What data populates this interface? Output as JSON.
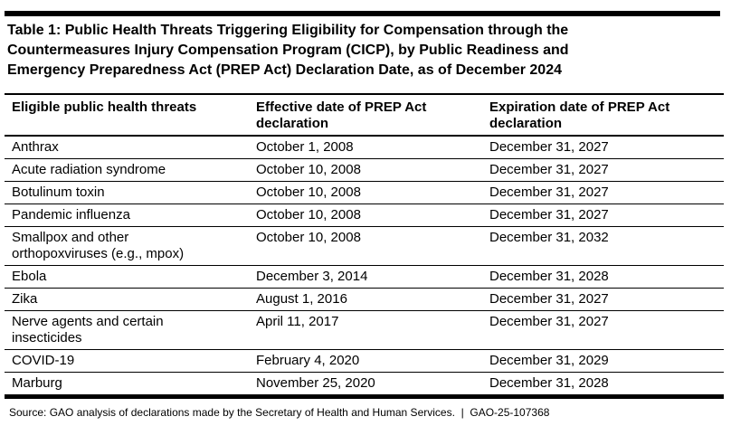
{
  "title_lines": [
    "Table 1: Public Health Threats Triggering Eligibility for Compensation through the",
    "Countermeasures Injury Compensation Program (CICP), by Public Readiness and",
    "Emergency Preparedness Act (PREP Act) Declaration Date, as of December 2024"
  ],
  "table": {
    "headers": [
      "Eligible public health threats",
      "Effective date of PREP Act declaration",
      "Expiration date of PREP Act declaration"
    ],
    "rows": [
      {
        "threat": "Anthrax",
        "effective": "October 1, 2008",
        "expiration": "December 31, 2027"
      },
      {
        "threat": "Acute radiation syndrome",
        "effective": "October 10, 2008",
        "expiration": "December 31, 2027"
      },
      {
        "threat": "Botulinum toxin",
        "effective": "October 10, 2008",
        "expiration": "December 31, 2027"
      },
      {
        "threat": "Pandemic influenza",
        "effective": "October 10, 2008",
        "expiration": "December 31, 2027"
      },
      {
        "threat": "Smallpox and other orthopoxviruses (e.g., mpox)",
        "effective": "October 10, 2008",
        "expiration": "December 31, 2032"
      },
      {
        "threat": "Ebola",
        "effective": "December 3, 2014",
        "expiration": "December 31, 2028"
      },
      {
        "threat": "Zika",
        "effective": "August 1, 2016",
        "expiration": "December 31, 2027"
      },
      {
        "threat": "Nerve agents and certain insecticides",
        "effective": "April 11, 2017",
        "expiration": "December 31, 2027"
      },
      {
        "threat": "COVID-19",
        "effective": "February 4, 2020",
        "expiration": "December 31, 2029"
      },
      {
        "threat": "Marburg",
        "effective": "November 25, 2020",
        "expiration": "December 31, 2028"
      }
    ]
  },
  "source_note": "Source: GAO analysis of declarations made by the Secretary of Health and Human Services.  |  GAO-25-107368",
  "colors": {
    "text": "#000000",
    "background": "#ffffff",
    "rule": "#000000"
  }
}
